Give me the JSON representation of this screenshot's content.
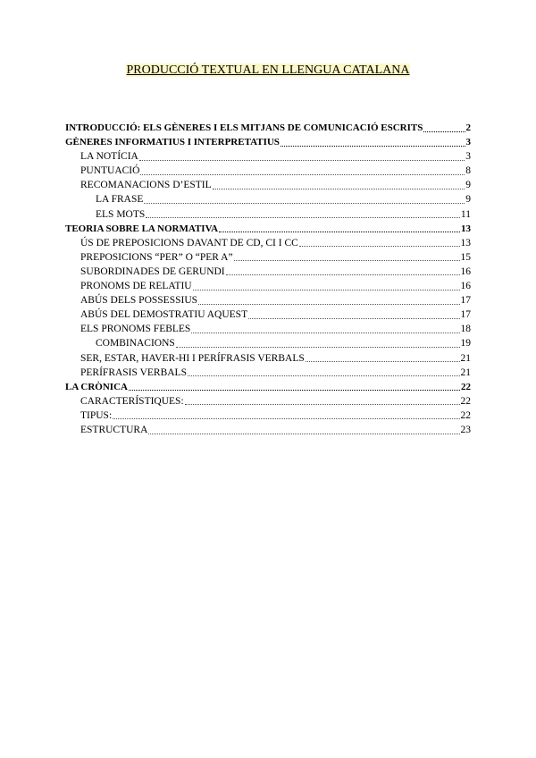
{
  "title": "PRODUCCIÓ TEXTUAL EN LLENGUA CATALANA",
  "toc": [
    {
      "level": 1,
      "label": "INTRODUCCIÓ: ELS GÈNERES I ELS MITJANS DE COMUNICACIÓ ESCRITS",
      "page": "2"
    },
    {
      "level": 1,
      "label": "GÈNERES INFORMATIUS I INTERPRETATIUS",
      "page": "3"
    },
    {
      "level": 2,
      "label": "LA NOTÍCIA",
      "page": "3"
    },
    {
      "level": 2,
      "label": "PUNTUACIÓ",
      "page": "8"
    },
    {
      "level": 2,
      "label": "RECOMANACIONS D’ESTIL",
      "page": "9"
    },
    {
      "level": 3,
      "label": "LA FRASE",
      "page": "9"
    },
    {
      "level": 3,
      "label": "ELS MOTS",
      "page": "11"
    },
    {
      "level": 1,
      "label": "TEORIA SOBRE LA NORMATIVA",
      "page": "13"
    },
    {
      "level": 2,
      "label": "ÚS DE PREPOSICIONS DAVANT DE CD, CI I CC",
      "page": "13"
    },
    {
      "level": 2,
      "label": "PREPOSICIONS “PER” O “PER A”",
      "page": "15"
    },
    {
      "level": 2,
      "label": "SUBORDINADES DE GERUNDI",
      "page": "16"
    },
    {
      "level": 2,
      "label": "PRONOMS DE RELATIU",
      "page": "16"
    },
    {
      "level": 2,
      "label": "ABÚS DELS POSSESSIUS",
      "page": "17"
    },
    {
      "level": 2,
      "label": "ABÚS DEL DEMOSTRATIU AQUEST",
      "page": "17"
    },
    {
      "level": 2,
      "label": "ELS PRONOMS FEBLES",
      "page": "18"
    },
    {
      "level": 3,
      "label": "COMBINACIONS",
      "page": "19"
    },
    {
      "level": 2,
      "label": "SER, ESTAR, HAVER-HI I PERÍFRASIS VERBALS",
      "page": "21"
    },
    {
      "level": 2,
      "label": "PERÍFRASIS VERBALS",
      "page": "21"
    },
    {
      "level": 1,
      "label": "LA CRÒNICA",
      "page": "22"
    },
    {
      "level": 2,
      "label": "CARACTERÍSTIQUES:",
      "page": "22"
    },
    {
      "level": 2,
      "label": "TIPUS:",
      "page": "22"
    },
    {
      "level": 2,
      "label": "ESTRUCTURA",
      "page": "23"
    }
  ]
}
